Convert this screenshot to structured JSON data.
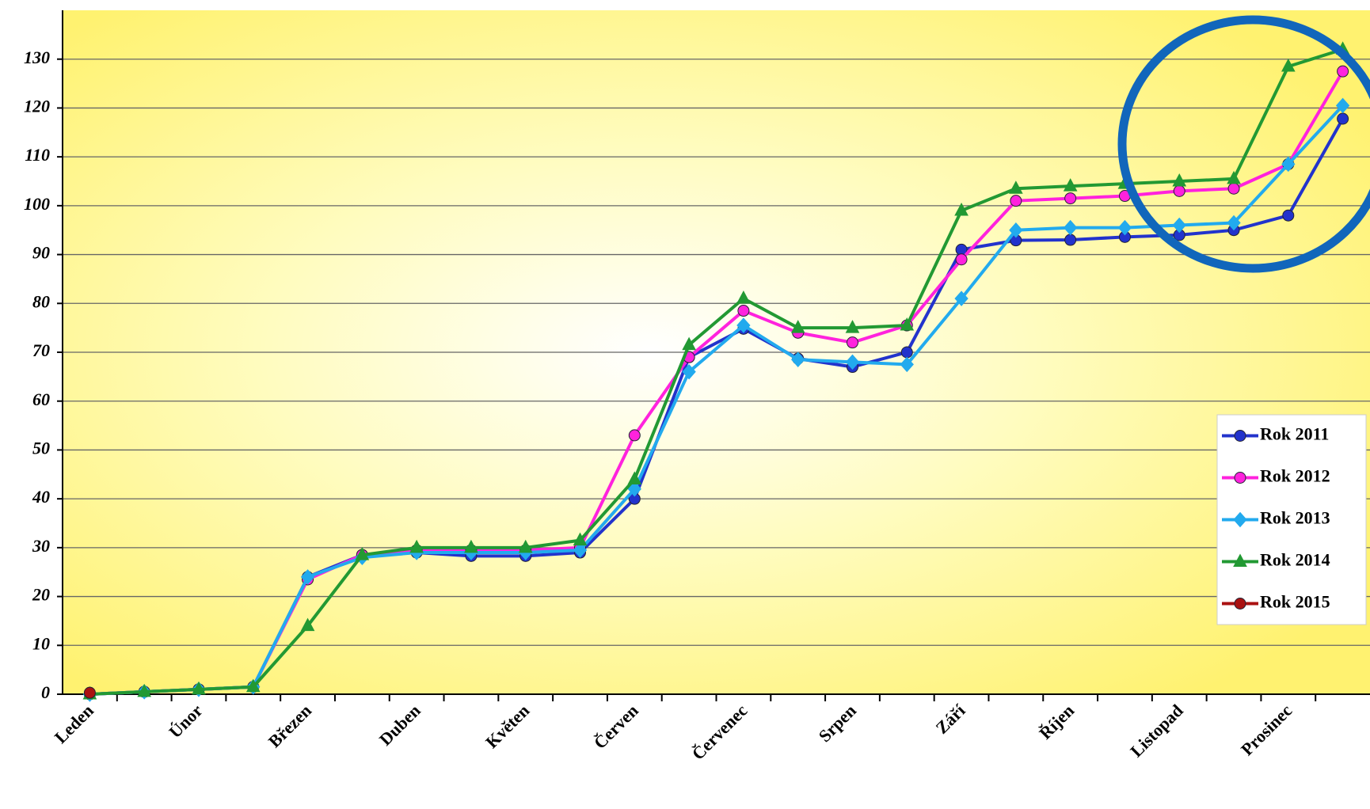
{
  "chart_data": {
    "type": "line",
    "categories": [
      "Leden",
      null,
      "Únor",
      null,
      "Březen",
      null,
      "Duben",
      null,
      "Květen",
      null,
      "Červen",
      null,
      "Červenec",
      null,
      "Srpen",
      null,
      "Září",
      null,
      "Říjen",
      null,
      "Listopad",
      null,
      "Prosinec",
      null
    ],
    "series": [
      {
        "name": "Rok 2011",
        "color": "#2233cc",
        "marker": "circle",
        "values": [
          0,
          0.5,
          1,
          1.5,
          24,
          28.5,
          29,
          28.3,
          28.3,
          29,
          40,
          69,
          74.8,
          68.7,
          67,
          70,
          91,
          92.9,
          93,
          93.6,
          94,
          95,
          98,
          117.8
        ]
      },
      {
        "name": "Rok 2012",
        "color": "#ff22dd",
        "marker": "circle",
        "values": [
          0,
          0.5,
          1,
          1.5,
          23.5,
          28.5,
          29.5,
          29.5,
          29.5,
          30,
          53,
          69,
          78.5,
          74,
          72,
          75.5,
          89,
          101,
          101.5,
          102,
          103,
          103.5,
          108.5,
          127.5
        ]
      },
      {
        "name": "Rok 2013",
        "color": "#22aaee",
        "marker": "diamond",
        "values": [
          0,
          0.5,
          1,
          1.5,
          24,
          28,
          29,
          29,
          29,
          29.5,
          42,
          66,
          75.5,
          68.5,
          68,
          67.5,
          81,
          95,
          95.5,
          95.5,
          96,
          96.5,
          108.5,
          120.5
        ]
      },
      {
        "name": "Rok 2014",
        "color": "#229933",
        "marker": "triangle",
        "values": [
          0,
          0.5,
          1,
          1.5,
          14,
          28.5,
          30,
          30,
          30,
          31.5,
          44,
          71.5,
          81,
          75,
          75,
          75.5,
          99,
          103.5,
          104,
          104.5,
          105,
          105.5,
          128.5,
          132
        ]
      },
      {
        "name": "Rok 2015",
        "color": "#aa1111",
        "marker": "circle",
        "values": [
          0.3,
          null,
          null,
          null,
          null,
          null,
          null,
          null,
          null,
          null,
          null,
          null,
          null,
          null,
          null,
          null,
          null,
          null,
          null,
          null,
          null,
          null,
          null,
          null
        ]
      }
    ],
    "ylim": [
      0,
      140
    ],
    "yticks": [
      0,
      10,
      20,
      30,
      40,
      50,
      60,
      70,
      80,
      90,
      100,
      110,
      120,
      130
    ],
    "grid": true,
    "legend": "bottom-right"
  }
}
